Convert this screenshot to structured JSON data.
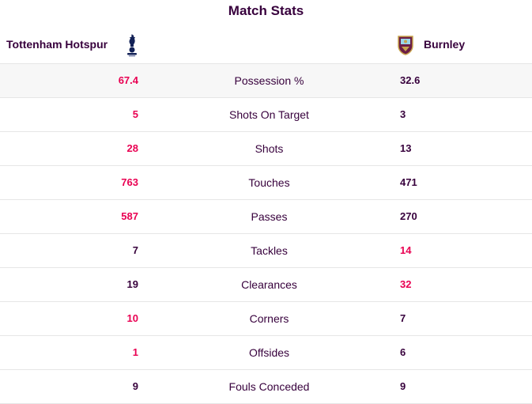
{
  "title": "Match Stats",
  "teams": {
    "home": {
      "name": "Tottenham Hotspur",
      "crest": "spurs-cockerel-crest-icon"
    },
    "away": {
      "name": "Burnley",
      "crest": "burnley-crest-icon"
    }
  },
  "colors": {
    "leader": "#e90052",
    "text": "#37003c",
    "divider": "#e6e6e6"
  },
  "stats": [
    {
      "label": "Possession %",
      "home": "67.4",
      "away": "32.6",
      "leader": "home"
    },
    {
      "label": "Shots On Target",
      "home": "5",
      "away": "3",
      "leader": "home"
    },
    {
      "label": "Shots",
      "home": "28",
      "away": "13",
      "leader": "home"
    },
    {
      "label": "Touches",
      "home": "763",
      "away": "471",
      "leader": "home"
    },
    {
      "label": "Passes",
      "home": "587",
      "away": "270",
      "leader": "home"
    },
    {
      "label": "Tackles",
      "home": "7",
      "away": "14",
      "leader": "away"
    },
    {
      "label": "Clearances",
      "home": "19",
      "away": "32",
      "leader": "away"
    },
    {
      "label": "Corners",
      "home": "10",
      "away": "7",
      "leader": "home"
    },
    {
      "label": "Offsides",
      "home": "1",
      "away": "6",
      "leader": "home"
    },
    {
      "label": "Fouls Conceded",
      "home": "9",
      "away": "9",
      "leader": "none"
    }
  ]
}
